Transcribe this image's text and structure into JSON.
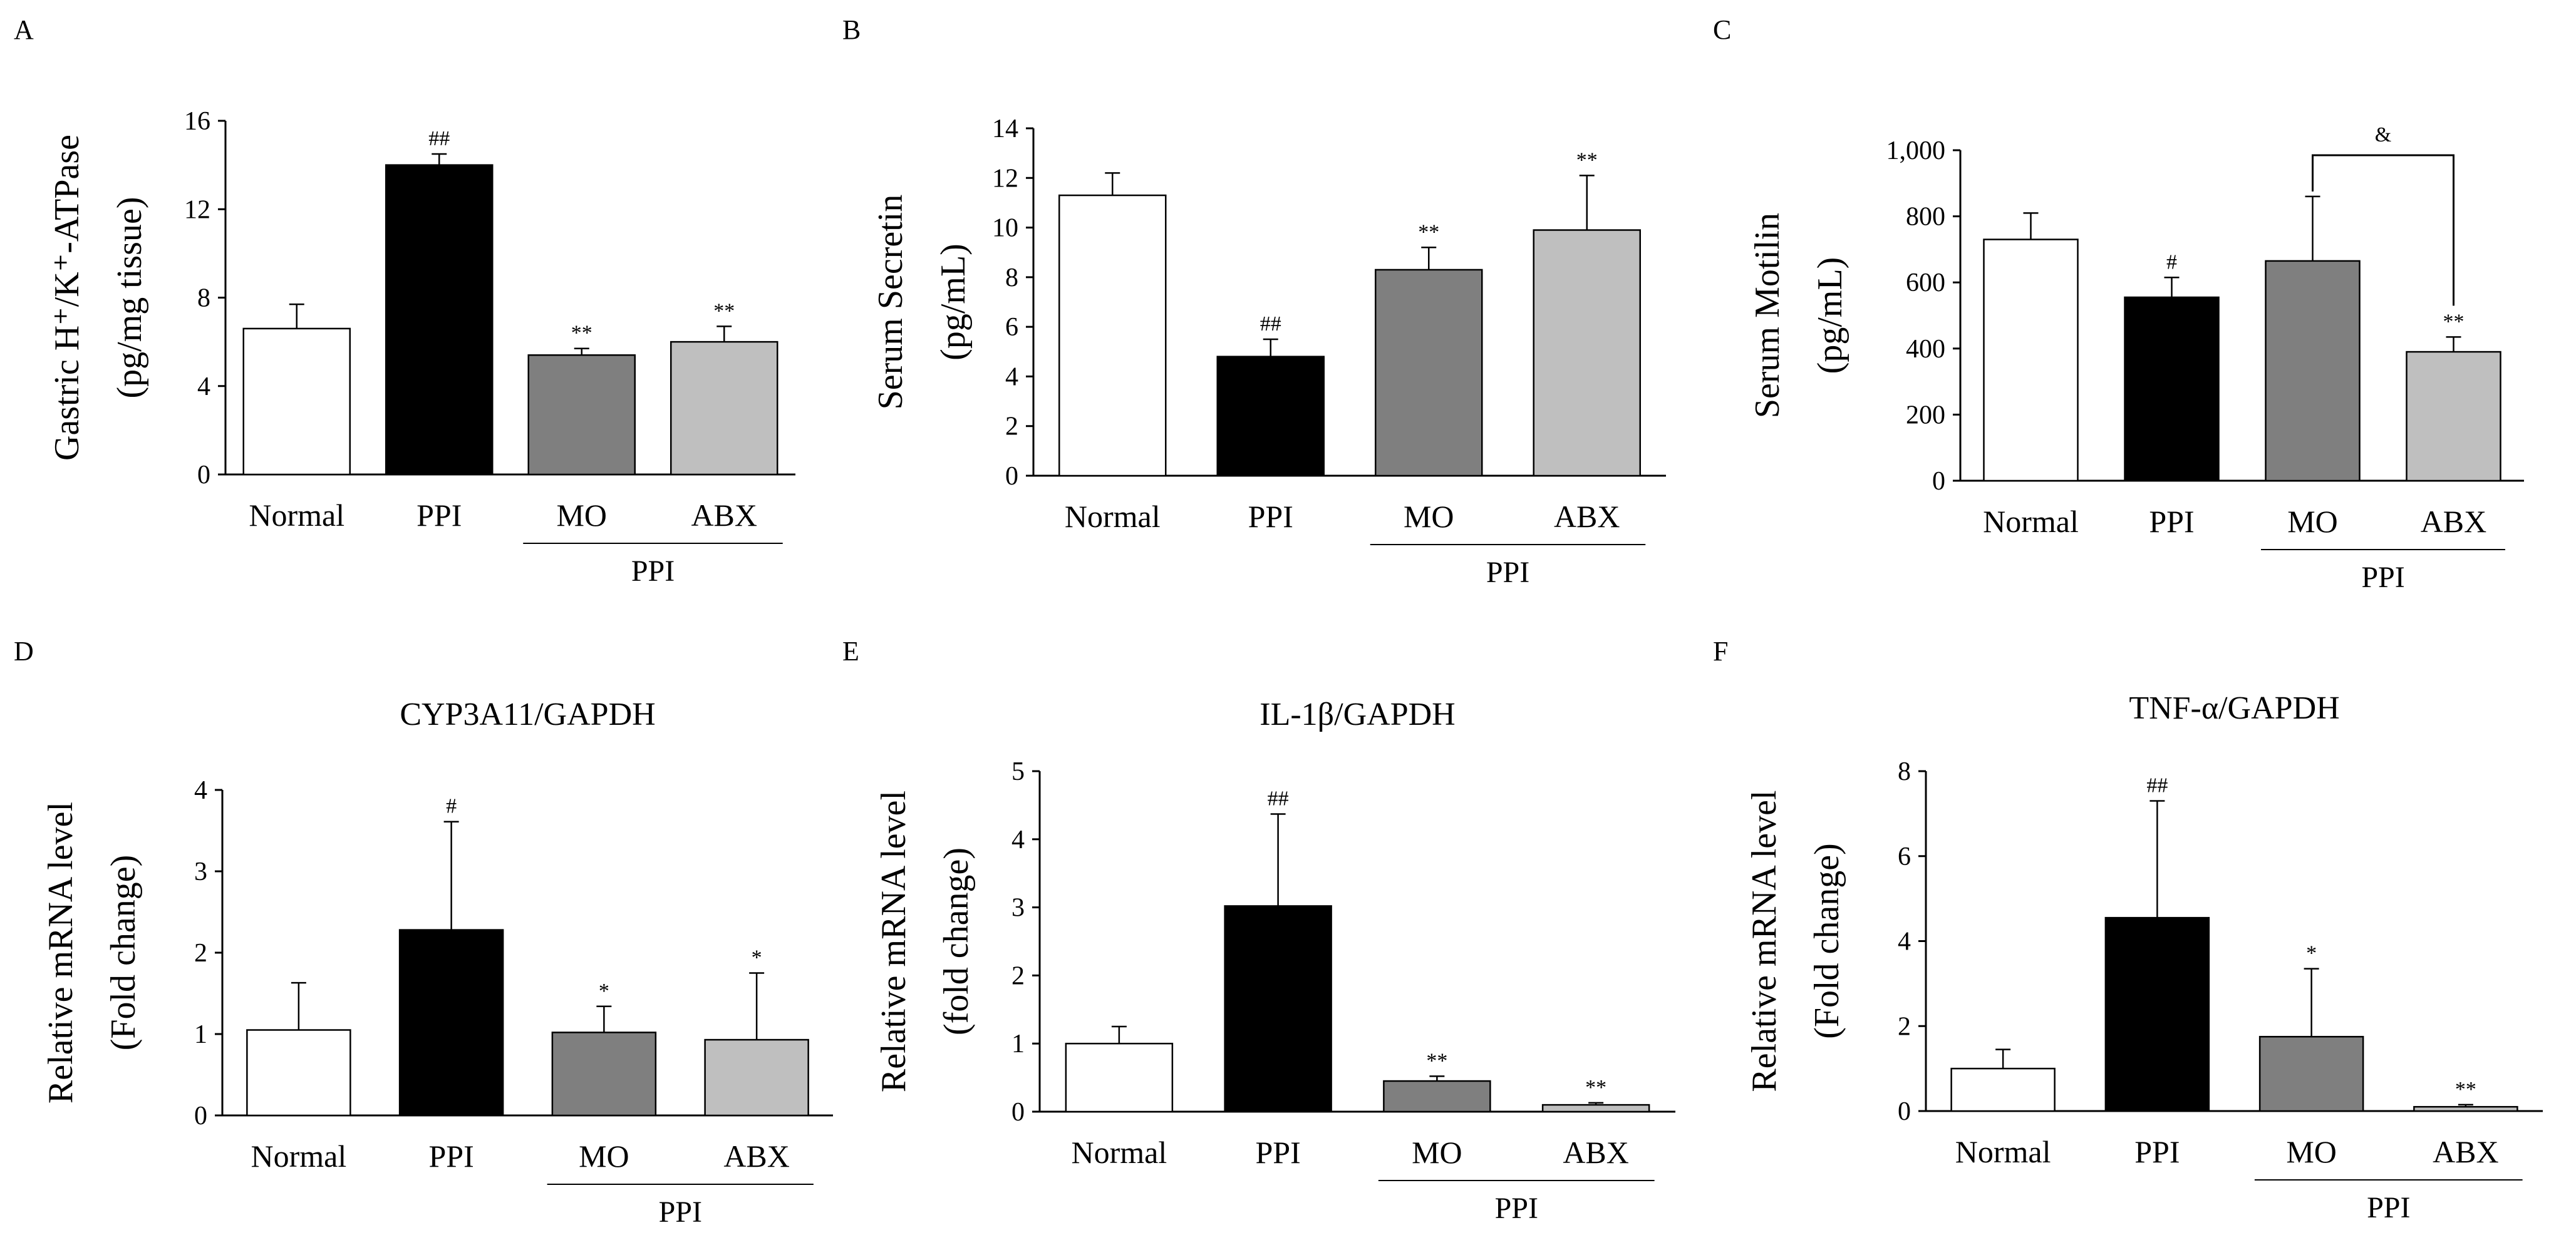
{
  "figure": {
    "categories": [
      "Normal",
      "PPI",
      "MO",
      "ABX"
    ],
    "group_label": "PPI",
    "bar_colors": [
      "#ffffff",
      "#000000",
      "#7f7f7f",
      "#bfbfbf"
    ],
    "edge_color": "#000000"
  },
  "chart_data": [
    {
      "id": "A",
      "type": "bar",
      "letter": "A",
      "title": "",
      "ylabel": [
        "Gastric H⁺/K⁺-ATPase",
        "(pg/mg tissue)"
      ],
      "categories": [
        "Normal",
        "PPI",
        "MO",
        "ABX"
      ],
      "values": [
        6.6,
        14.0,
        5.4,
        6.0
      ],
      "errors": [
        1.1,
        0.5,
        0.3,
        0.7
      ],
      "annotations": [
        "",
        "##",
        "**",
        "**"
      ],
      "ylim": [
        0,
        16
      ],
      "ticks": [
        0,
        4,
        8,
        12,
        16
      ],
      "tick_labels": [
        "0",
        "4",
        "8",
        "12",
        "16"
      ],
      "group_label": "PPI"
    },
    {
      "id": "B",
      "type": "bar",
      "letter": "B",
      "title": "",
      "ylabel": [
        "Serum Secretin",
        "(pg/mL)"
      ],
      "categories": [
        "Normal",
        "PPI",
        "MO",
        "ABX"
      ],
      "values": [
        11.3,
        4.8,
        8.3,
        9.9
      ],
      "errors": [
        0.9,
        0.7,
        0.9,
        2.2
      ],
      "annotations": [
        "",
        "##",
        "**",
        "**"
      ],
      "ylim": [
        0,
        14
      ],
      "ticks": [
        0,
        2,
        4,
        6,
        8,
        10,
        12,
        14
      ],
      "tick_labels": [
        "0",
        "2",
        "4",
        "6",
        "8",
        "10",
        "12",
        "14"
      ],
      "group_label": "PPI"
    },
    {
      "id": "C",
      "type": "bar",
      "letter": "C",
      "title": "",
      "ylabel": [
        "Serum Motilin",
        "(pg/mL)"
      ],
      "categories": [
        "Normal",
        "PPI",
        "MO",
        "ABX"
      ],
      "values": [
        730,
        555,
        665,
        390
      ],
      "errors": [
        80,
        60,
        195,
        45
      ],
      "annotations": [
        "",
        "#",
        "",
        "**"
      ],
      "ylim": [
        0,
        1000
      ],
      "ticks": [
        0,
        200,
        400,
        600,
        800,
        1000
      ],
      "tick_labels": [
        "0",
        "200",
        "400",
        "600",
        "800",
        "1,000"
      ],
      "group_label": "PPI",
      "bracket": {
        "from": 2,
        "to": 3,
        "label": "&"
      }
    },
    {
      "id": "D",
      "type": "bar",
      "letter": "D",
      "title": "CYP3A11/GAPDH",
      "ylabel": [
        "Relative mRNA level",
        "(Fold change)"
      ],
      "categories": [
        "Normal",
        "PPI",
        "MO",
        "ABX"
      ],
      "values": [
        1.05,
        2.28,
        1.02,
        0.93
      ],
      "errors": [
        0.58,
        1.33,
        0.32,
        0.82
      ],
      "annotations": [
        "",
        "#",
        "*",
        "*"
      ],
      "ylim": [
        0,
        4
      ],
      "ticks": [
        0,
        1,
        2,
        3,
        4
      ],
      "tick_labels": [
        "0",
        "1",
        "2",
        "3",
        "4"
      ],
      "group_label": "PPI"
    },
    {
      "id": "E",
      "type": "bar",
      "letter": "E",
      "title": "IL-1β/GAPDH",
      "ylabel": [
        "Relative mRNA level",
        "(fold change)"
      ],
      "categories": [
        "Normal",
        "PPI",
        "MO",
        "ABX"
      ],
      "values": [
        1.0,
        3.02,
        0.45,
        0.1
      ],
      "errors": [
        0.25,
        1.35,
        0.07,
        0.03
      ],
      "annotations": [
        "",
        "##",
        "**",
        "**"
      ],
      "ylim": [
        0,
        5
      ],
      "ticks": [
        0,
        1,
        2,
        3,
        4,
        5
      ],
      "tick_labels": [
        "0",
        "1",
        "2",
        "3",
        "4",
        "5"
      ],
      "group_label": "PPI"
    },
    {
      "id": "F",
      "type": "bar",
      "letter": "F",
      "title": "TNF-α/GAPDH",
      "ylabel": [
        "Relative mRNA level",
        "(Fold change)"
      ],
      "categories": [
        "Normal",
        "PPI",
        "MO",
        "ABX"
      ],
      "values": [
        1.0,
        4.55,
        1.75,
        0.1
      ],
      "errors": [
        0.45,
        2.75,
        1.6,
        0.05
      ],
      "annotations": [
        "",
        "##",
        "*",
        "**"
      ],
      "ylim": [
        0,
        8
      ],
      "ticks": [
        0,
        2,
        4,
        6,
        8
      ],
      "tick_labels": [
        "0",
        "2",
        "4",
        "6",
        "8"
      ],
      "group_label": "PPI"
    }
  ]
}
